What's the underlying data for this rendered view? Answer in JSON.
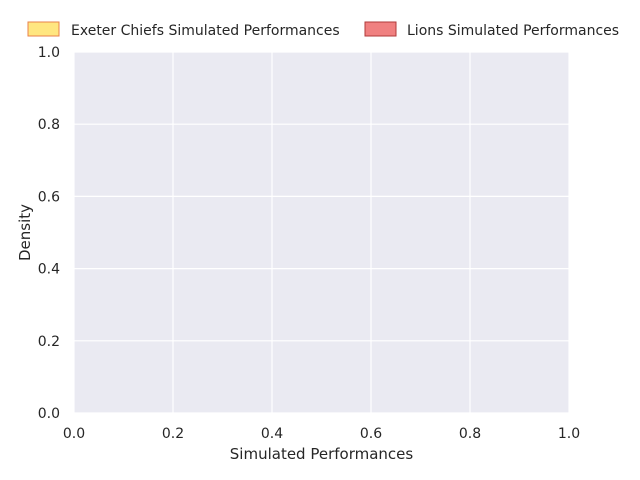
{
  "chart_data": {
    "type": "area",
    "title": "",
    "xlabel": "Simulated Performances",
    "ylabel": "Density",
    "xlim": [
      0.0,
      1.0
    ],
    "ylim": [
      0.0,
      1.0
    ],
    "xticks": [
      0.0,
      0.2,
      0.4,
      0.6,
      0.8,
      1.0
    ],
    "yticks": [
      0.0,
      0.2,
      0.4,
      0.6,
      0.8,
      1.0
    ],
    "xtick_labels": [
      "0.0",
      "0.2",
      "0.4",
      "0.6",
      "0.8",
      "1.0"
    ],
    "ytick_labels": [
      "0.0",
      "0.2",
      "0.4",
      "0.6",
      "0.8",
      "1.0"
    ],
    "grid": true,
    "legend_position": "top",
    "series": [
      {
        "name": "Exeter Chiefs Simulated Performances",
        "fill": "#ffe680",
        "edge": "#e8824a",
        "values": []
      },
      {
        "name": "Lions Simulated Performances",
        "fill": "#f08080",
        "edge": "#b03a3a",
        "values": []
      }
    ],
    "plot_bg": "#eaeaf2",
    "grid_color": "#ffffff"
  }
}
